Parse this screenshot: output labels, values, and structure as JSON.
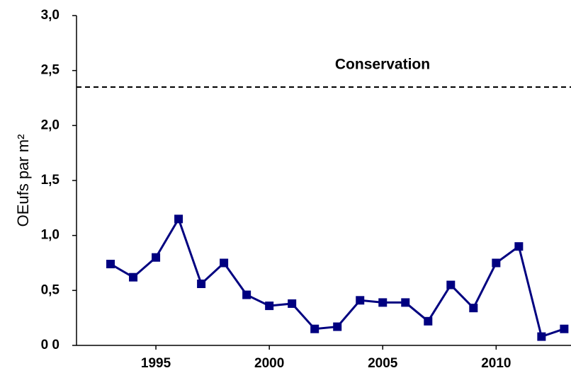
{
  "chart_data": {
    "type": "line",
    "ylabel": "OEufs par m²",
    "x": [
      1993,
      1994,
      1995,
      1996,
      1997,
      1998,
      1999,
      2000,
      2001,
      2002,
      2003,
      2004,
      2005,
      2006,
      2007,
      2008,
      2009,
      2010,
      2011,
      2012,
      2013
    ],
    "series": [
      {
        "name": "OEufs",
        "color": "#000080",
        "values": [
          0.74,
          0.62,
          0.8,
          1.15,
          0.56,
          0.75,
          0.46,
          0.36,
          0.38,
          0.15,
          0.17,
          0.41,
          0.39,
          0.39,
          0.22,
          0.55,
          0.34,
          0.75,
          0.9,
          0.08,
          0.15
        ]
      }
    ],
    "reference": {
      "value": 2.35,
      "label": "Conservation"
    },
    "xlim": [
      1991.5,
      2013.3
    ],
    "xticks": [
      1995,
      2000,
      2005,
      2010
    ],
    "ylim": [
      0,
      3
    ],
    "yticks": [
      {
        "value": 0,
        "label": "0 0"
      },
      {
        "value": 0.5,
        "label": "0,5"
      },
      {
        "value": 1,
        "label": "1,0"
      },
      {
        "value": 1.5,
        "label": "1,5"
      },
      {
        "value": 2,
        "label": "2,0"
      },
      {
        "value": 2.5,
        "label": "2,5"
      },
      {
        "value": 3,
        "label": "3,0"
      }
    ],
    "grid": false
  }
}
